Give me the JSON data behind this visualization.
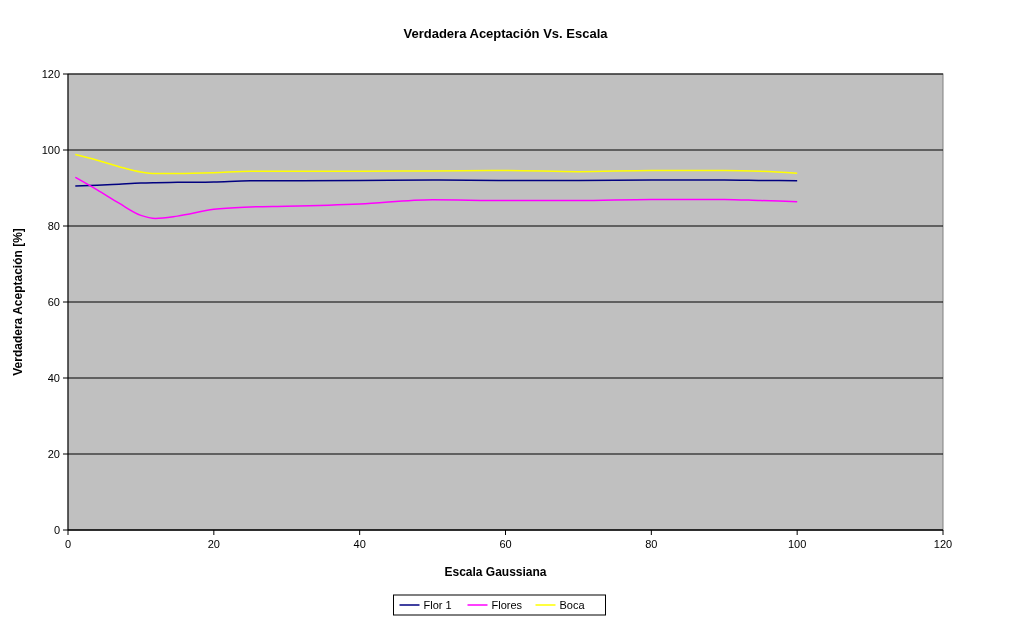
{
  "chart_data": {
    "type": "line",
    "title": "Verdadera Aceptación Vs. Escala",
    "xlabel": "Escala Gaussiana",
    "ylabel": "Verdadera Aceptación [%]",
    "xlim": [
      0,
      120
    ],
    "xticks": [
      0,
      20,
      40,
      60,
      80,
      100,
      120
    ],
    "ylim": [
      0,
      120
    ],
    "yticks": [
      0,
      20,
      40,
      60,
      80,
      100,
      120
    ],
    "grid": "y",
    "legend": "bottom",
    "marker": "none",
    "x": [
      1,
      4,
      7,
      10,
      12,
      15,
      20,
      25,
      30,
      40,
      50,
      60,
      70,
      80,
      90,
      95,
      100
    ],
    "series": [
      {
        "name": "Flor 1",
        "color": "#000080",
        "values": [
          90.5,
          90.7,
          91,
          91.3,
          91.4,
          91.5,
          91.6,
          91.9,
          91.9,
          92,
          92.1,
          92,
          92,
          92.1,
          92.1,
          92,
          91.9
        ]
      },
      {
        "name": "Flores",
        "color": "#ff00ff",
        "values": [
          92.8,
          89.5,
          86,
          82.8,
          82,
          82.6,
          84.4,
          85,
          85.2,
          85.8,
          86.9,
          86.7,
          86.7,
          87,
          87,
          86.7,
          86.4
        ]
      },
      {
        "name": "Boca",
        "color": "#ffff00",
        "values": [
          98.8,
          97.3,
          95.6,
          94.2,
          93.8,
          93.8,
          94,
          94.4,
          94.4,
          94.4,
          94.5,
          94.6,
          94.3,
          94.6,
          94.6,
          94.4,
          93.9
        ]
      }
    ]
  }
}
